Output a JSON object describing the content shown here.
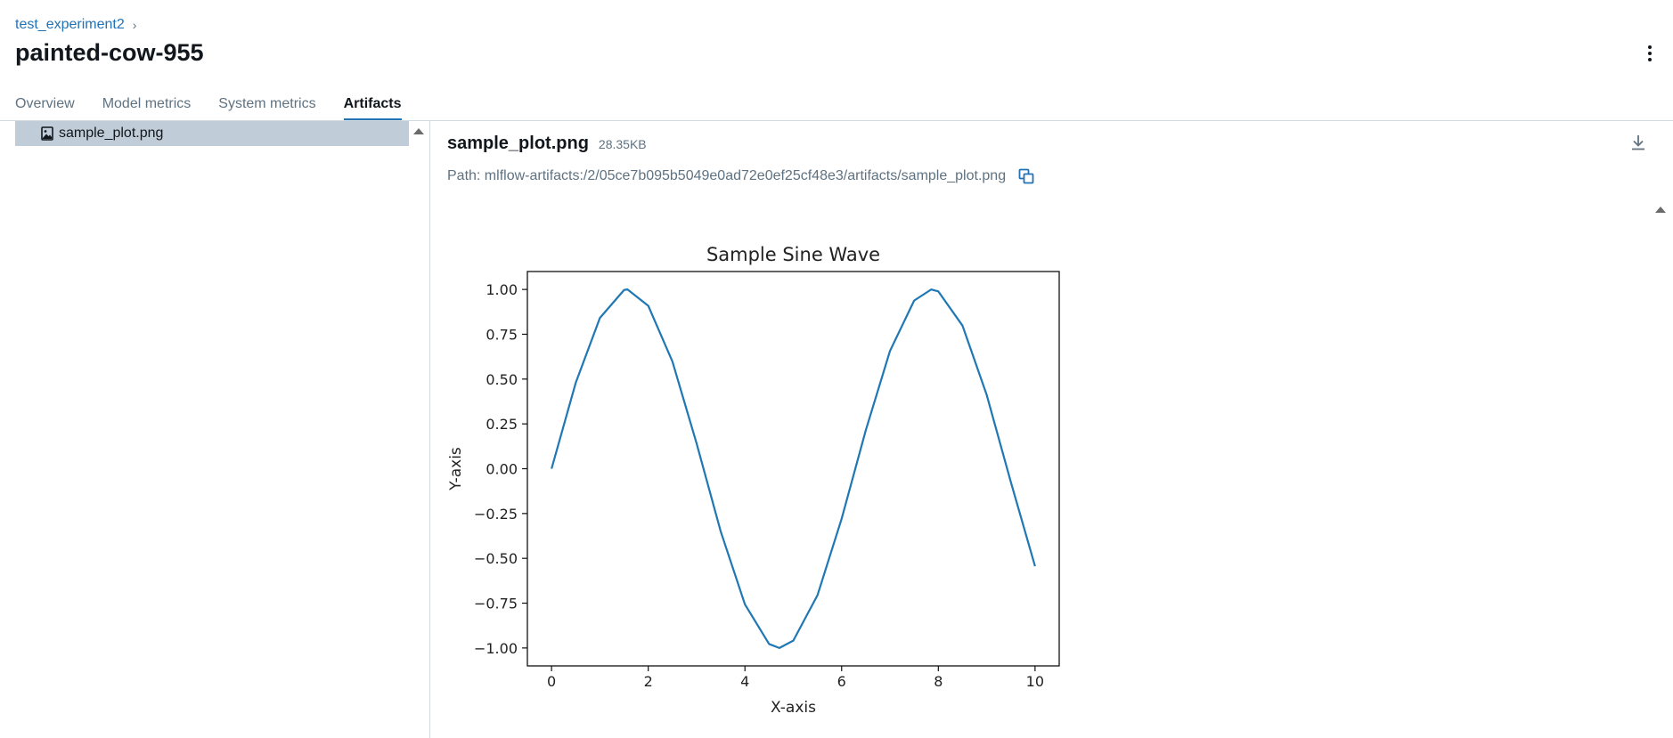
{
  "breadcrumb": {
    "experiment": "test_experiment2",
    "separator": "›"
  },
  "run": {
    "title": "painted-cow-955"
  },
  "tabs": [
    {
      "label": "Overview"
    },
    {
      "label": "Model metrics"
    },
    {
      "label": "System metrics"
    },
    {
      "label": "Artifacts",
      "active": true
    }
  ],
  "artifact_tree": {
    "items": [
      {
        "label": "sample_plot.png",
        "icon": "image-file-icon",
        "selected": true
      }
    ]
  },
  "artifact": {
    "name": "sample_plot.png",
    "size": "28.35KB",
    "path": "Path: mlflow-artifacts:/2/05ce7b095b5049e0ad72e0ef25cf48e3/artifacts/sample_plot.png"
  },
  "icons": {
    "more": "kebab-menu-icon",
    "download": "download-icon",
    "copy": "copy-icon",
    "scroll": "scroll-up-arrow-icon"
  },
  "colors": {
    "accent": "#2272b4",
    "selected_row": "#c0cdd8",
    "series": "#1f77b4",
    "muted_text": "#5f7281",
    "border": "#d1d9e1"
  },
  "chart_data": {
    "type": "line",
    "title": "Sample Sine Wave",
    "xlabel": "X-axis",
    "ylabel": "Y-axis",
    "xlim": [
      -0.5,
      10.5
    ],
    "ylim": [
      -1.1,
      1.1
    ],
    "xticks": [
      0,
      2,
      4,
      6,
      8,
      10
    ],
    "xtick_labels": [
      "0",
      "2",
      "4",
      "6",
      "8",
      "10"
    ],
    "yticks": [
      -1.0,
      -0.75,
      -0.5,
      -0.25,
      0.0,
      0.25,
      0.5,
      0.75,
      1.0
    ],
    "ytick_labels": [
      "−1.00",
      "−0.75",
      "−0.50",
      "−0.25",
      "0.00",
      "0.25",
      "0.50",
      "0.75",
      "1.00"
    ],
    "grid": false,
    "series": [
      {
        "color": "#1f77b4",
        "x": [
          0,
          0.5,
          1,
          1.5,
          1.5708,
          2,
          2.5,
          3,
          3.5,
          4,
          4.5,
          4.7124,
          5,
          5.5,
          6,
          6.5,
          7,
          7.5,
          7.854,
          8,
          8.5,
          9,
          9.5,
          10
        ],
        "y": [
          0.0,
          0.479,
          0.841,
          0.997,
          1.0,
          0.909,
          0.598,
          0.141,
          -0.351,
          -0.757,
          -0.978,
          -1.0,
          -0.959,
          -0.706,
          -0.279,
          0.215,
          0.657,
          0.938,
          1.0,
          0.989,
          0.798,
          0.412,
          -0.075,
          -0.544
        ]
      }
    ]
  }
}
